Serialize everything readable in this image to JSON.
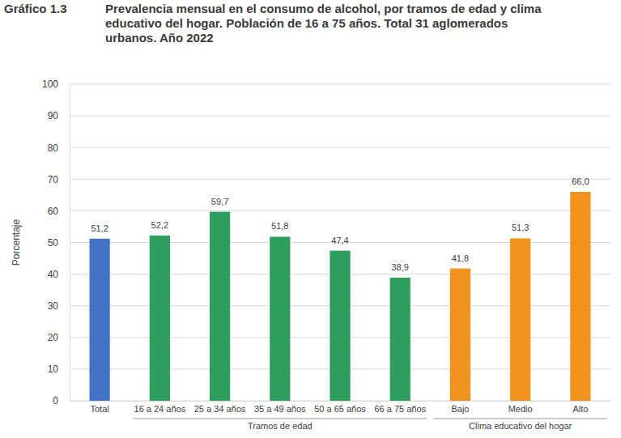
{
  "chart_data": {
    "type": "bar",
    "annotations": [
      "Gráfico 1.3"
    ],
    "title": "Prevalencia mensual en el consumo de alcohol, por tramos de edad y clima educativo del hogar. Población de 16 a 75 años. Total 31 aglomerados urbanos. Año 2022",
    "y_label": "Porcentaje",
    "categories": [
      "Total",
      "16 a 24 años",
      "25 a 34 años",
      "35 a 49 años",
      "50 a 65 años",
      "66 a 75 años",
      "Bajo",
      "Medio",
      "Alto"
    ],
    "values": [
      51.2,
      52.2,
      59.7,
      51.8,
      47.4,
      38.9,
      41.8,
      51.3,
      66.0
    ],
    "value_labels": [
      "51,2",
      "52,2",
      "59,7",
      "51,8",
      "47,4",
      "38,9",
      "41,8",
      "51,3",
      "66,0"
    ],
    "colors": [
      "#4472c4",
      "#2e9e5e",
      "#2e9e5e",
      "#2e9e5e",
      "#2e9e5e",
      "#2e9e5e",
      "#f3931f",
      "#f3931f",
      "#f3931f"
    ],
    "groups": [
      {
        "label": "Tramos de edad",
        "members": [
          "16 a 24 años",
          "25 a 34 años",
          "35 a 49 años",
          "50 a 65 años",
          "66 a 75 años"
        ]
      },
      {
        "label": "Clima educativo del hogar",
        "members": [
          "Bajo",
          "Medio",
          "Alto"
        ]
      }
    ],
    "ylim": [
      0,
      100
    ],
    "yticks": [
      0,
      10,
      20,
      30,
      40,
      50,
      60,
      70,
      80,
      90,
      100
    ],
    "grid": true,
    "data_labels": true
  }
}
